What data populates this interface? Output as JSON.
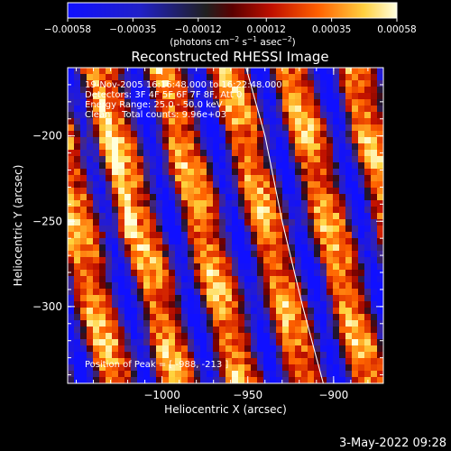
{
  "chart_data": {
    "type": "heatmap",
    "title": "Reconstructed RHESSI Image",
    "xlabel": "Heliocentric X (arcsec)",
    "ylabel": "Heliocentric Y (arcsec)",
    "xlim": [
      -1055,
      -871
    ],
    "ylim": [
      -345,
      -160
    ],
    "xticks": [
      {
        "value": -1000,
        "label": "−1000"
      },
      {
        "value": -950,
        "label": "−950"
      },
      {
        "value": -900,
        "label": "−900"
      }
    ],
    "yticks": [
      {
        "value": -200,
        "label": "−200"
      },
      {
        "value": -250,
        "label": "−250"
      },
      {
        "value": -300,
        "label": "−300"
      }
    ],
    "colorbar": {
      "range": [
        -0.00058,
        0.00058
      ],
      "ticks": [
        {
          "value": -0.00058,
          "label": "−0.00058"
        },
        {
          "value": -0.00035,
          "label": "−0.00035"
        },
        {
          "value": -0.00012,
          "label": "−0.00012"
        },
        {
          "value": 0.00012,
          "label": "0.00012"
        },
        {
          "value": 0.00035,
          "label": "0.00035"
        },
        {
          "value": 0.00058,
          "label": "0.00058"
        }
      ],
      "units_text": "(photons cm",
      "units_sup1": "−2",
      "units_mid": " s",
      "units_sup2": "−1",
      "units_end": " asec",
      "units_sup3": "−2",
      "units_close": ")"
    },
    "info_lines": [
      "19-Nov-2005 16:16:48.000 to 16:22:48.000",
      "Detectors: 3F 4F 5F 6F 7F 8F, Att 0",
      "Energy Range: 25.0 - 50.0 keV",
      "Clean    Total counts: 9.96e+03"
    ],
    "peak_label": "Position of Peak = [ -988, -213 ]",
    "limb_curve": [
      [
        -951,
        -160
      ],
      [
        -940,
        -200
      ],
      [
        -930,
        -250
      ],
      [
        -918,
        -300
      ],
      [
        -906,
        -345
      ]
    ],
    "stripe_period_x": 37,
    "stripe_slope": 0.25,
    "grid": false
  },
  "footer": {
    "timestamp": "3-May-2022 09:28"
  }
}
